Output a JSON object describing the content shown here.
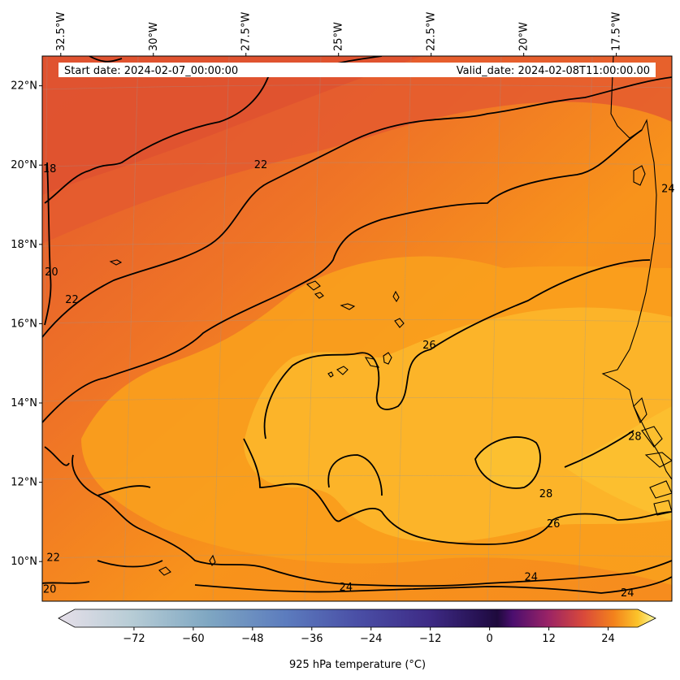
{
  "header": {
    "start_date": "Start date: 2024-02-07_00:00:00",
    "valid_date": "Valid_date: 2024-02-08T11:00:00.00"
  },
  "map": {
    "lon_range": [
      -33.0,
      -16.0
    ],
    "lat_range": [
      9.0,
      22.75
    ],
    "lon_ticks": [
      {
        "value": -32.5,
        "label": "32.5°W"
      },
      {
        "value": -30.0,
        "label": "30°W"
      },
      {
        "value": -27.5,
        "label": "27.5°W"
      },
      {
        "value": -25.0,
        "label": "25°W"
      },
      {
        "value": -22.5,
        "label": "22.5°W"
      },
      {
        "value": -20.0,
        "label": "20°W"
      },
      {
        "value": -17.5,
        "label": "17.5°W"
      }
    ],
    "lat_ticks": [
      {
        "value": 22,
        "label": "22°N"
      },
      {
        "value": 20,
        "label": "20°N"
      },
      {
        "value": 18,
        "label": "18°N"
      },
      {
        "value": 16,
        "label": "16°N"
      },
      {
        "value": 14,
        "label": "14°N"
      },
      {
        "value": 12,
        "label": "12°N"
      },
      {
        "value": 10,
        "label": "10°N"
      }
    ],
    "contour_labels": [
      {
        "text": "18",
        "lon": -32.8,
        "lat": 19.9
      },
      {
        "text": "20",
        "lon": -32.75,
        "lat": 17.3
      },
      {
        "text": "22",
        "lon": -32.2,
        "lat": 16.6
      },
      {
        "text": "22",
        "lon": -27.1,
        "lat": 20.0
      },
      {
        "text": "26",
        "lon": -22.55,
        "lat": 15.45
      },
      {
        "text": "28",
        "lon": -17.0,
        "lat": 13.15
      },
      {
        "text": "28",
        "lon": -19.4,
        "lat": 11.7
      },
      {
        "text": "26",
        "lon": -19.2,
        "lat": 10.95
      },
      {
        "text": "24",
        "lon": -24.8,
        "lat": 9.35
      },
      {
        "text": "24",
        "lon": -19.8,
        "lat": 9.6
      },
      {
        "text": "24",
        "lon": -17.2,
        "lat": 9.2
      },
      {
        "text": "24",
        "lon": -16.1,
        "lat": 19.4
      },
      {
        "text": "22",
        "lon": -32.7,
        "lat": 10.1
      },
      {
        "text": "20",
        "lon": -32.8,
        "lat": 9.3
      }
    ]
  },
  "colorbar": {
    "label": "925 hPa temperature (°C)",
    "vmin": -84,
    "vmax": 30,
    "ticks": [
      {
        "value": -72,
        "label": "−72"
      },
      {
        "value": -60,
        "label": "−60"
      },
      {
        "value": -48,
        "label": "−48"
      },
      {
        "value": -36,
        "label": "−36"
      },
      {
        "value": -24,
        "label": "−24"
      },
      {
        "value": -12,
        "label": "−12"
      },
      {
        "value": 0,
        "label": "0"
      },
      {
        "value": 12,
        "label": "12"
      },
      {
        "value": 24,
        "label": "24"
      }
    ],
    "extend": "both"
  },
  "colors": {
    "cold": "#e8e0ec",
    "coolblue": "#5a7fb8",
    "purple": "#4a2a88",
    "darkest": "#1a0b40",
    "red": "#e05a30",
    "orange": "#f58c1c",
    "amber": "#fbb424",
    "yellow": "#fcfca0"
  }
}
